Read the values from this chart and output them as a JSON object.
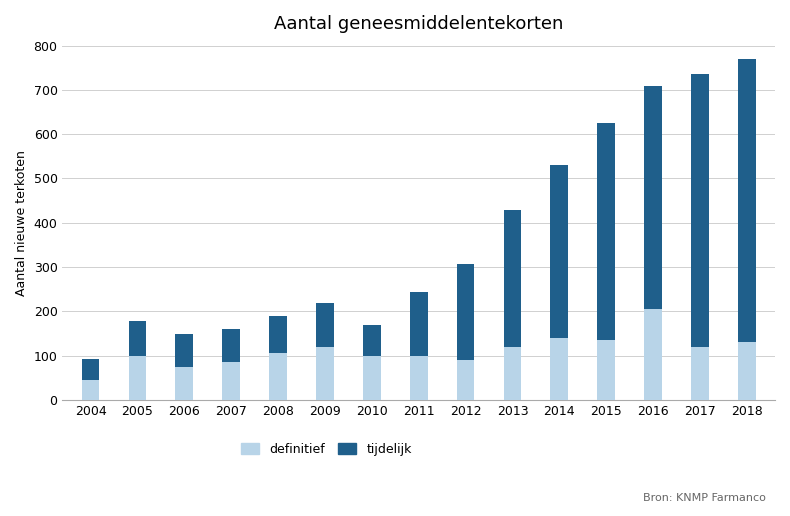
{
  "title": "Aantal geneesmiddelentekorten",
  "ylabel": "Aantal nieuwe terkoten",
  "years": [
    2004,
    2005,
    2006,
    2007,
    2008,
    2009,
    2010,
    2011,
    2012,
    2013,
    2014,
    2015,
    2016,
    2017,
    2018
  ],
  "definitief": [
    45,
    100,
    75,
    85,
    105,
    120,
    100,
    100,
    90,
    120,
    140,
    135,
    205,
    120,
    130
  ],
  "tijdelijk": [
    47,
    78,
    73,
    75,
    85,
    98,
    70,
    143,
    218,
    308,
    390,
    490,
    505,
    615,
    640
  ],
  "color_definitief": "#b8d4e8",
  "color_tijdelijk": "#1f5f8b",
  "ylim": [
    0,
    800
  ],
  "yticks": [
    0,
    100,
    200,
    300,
    400,
    500,
    600,
    700,
    800
  ],
  "legend_definitief": "definitief",
  "legend_tijdelijk": "tijdelijk",
  "source_text": "Bron: KNMP Farmanco",
  "background_color": "#ffffff",
  "grid_color": "#d0d0d0"
}
